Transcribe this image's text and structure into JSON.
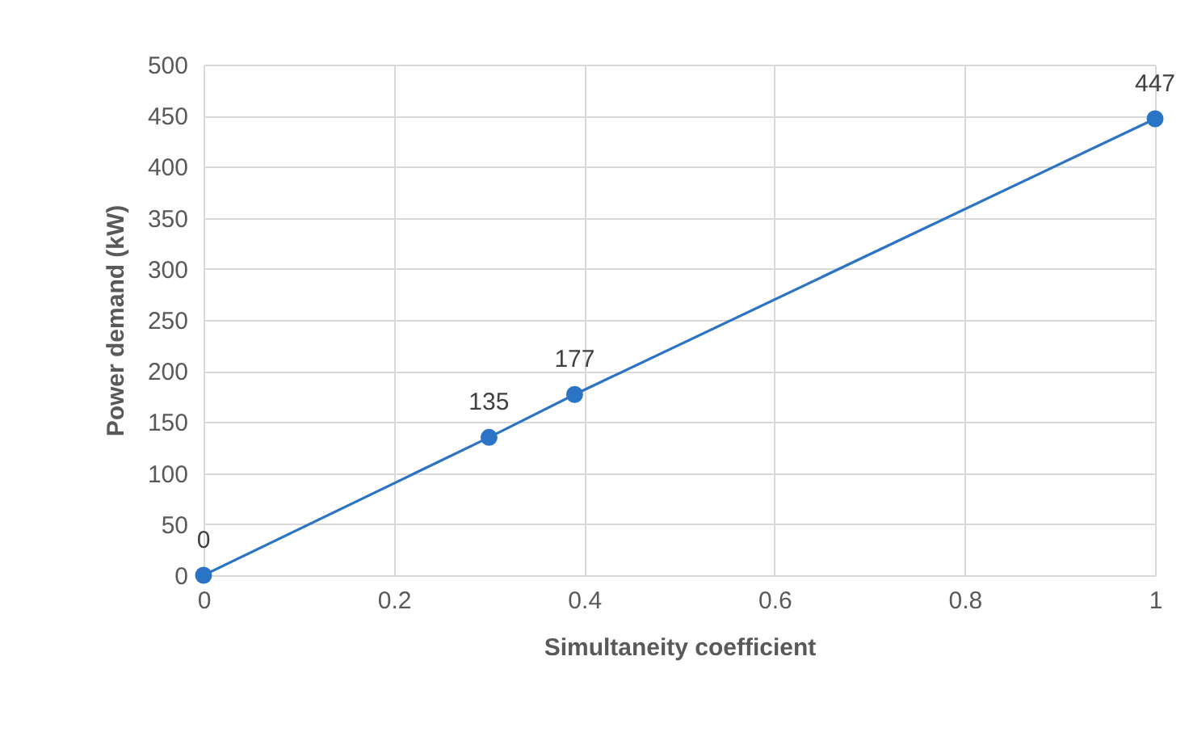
{
  "chart_data": {
    "type": "line",
    "xlabel": "Simultaneity coefficient",
    "ylabel": "Power demand (kW)",
    "x": [
      0,
      0.3,
      0.39,
      1
    ],
    "series": [
      {
        "color": "#2a73c5",
        "values": [
          0,
          135,
          177,
          447
        ]
      }
    ],
    "xlim": [
      0,
      1
    ],
    "xticks": [
      0,
      0.2,
      0.4,
      0.6,
      0.8,
      1
    ],
    "ylim": [
      0,
      500
    ],
    "yticks": [
      0,
      50,
      100,
      150,
      200,
      250,
      300,
      350,
      400,
      450,
      500
    ],
    "grid": true,
    "marker": "circle",
    "data_labels": true
  }
}
